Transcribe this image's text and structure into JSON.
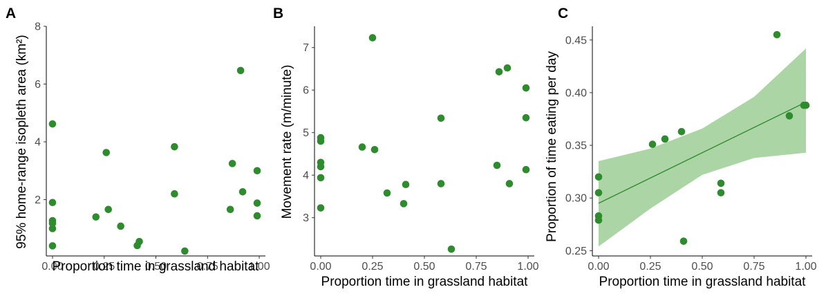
{
  "colors": {
    "point": "#2e8b2e",
    "ribbon": "#a8d3a0",
    "fit": "#2e8b2e"
  },
  "chart_data": [
    {
      "type": "scatter",
      "panel": "A",
      "xlabel": "Proportion time in grassland habitat",
      "ylabel": "95% home-range isopleth area (km²)",
      "xlim": [
        -0.03,
        1.03
      ],
      "ylim": [
        0.05,
        8.0
      ],
      "xticks": [
        0,
        0.25,
        0.5,
        0.75,
        1.0
      ],
      "xtick_labels": [
        "0.00",
        "0.25",
        "0.50",
        "0.75",
        "1.00"
      ],
      "yticks": [
        2,
        4,
        6,
        8
      ],
      "ytick_labels": [
        "2",
        "4",
        "6",
        "8"
      ],
      "grid": false,
      "points": [
        {
          "x": 0.0,
          "y": 4.62
        },
        {
          "x": 0.0,
          "y": 1.9
        },
        {
          "x": 0.0,
          "y": 1.27
        },
        {
          "x": 0.0,
          "y": 1.18
        },
        {
          "x": 0.0,
          "y": 1.0
        },
        {
          "x": 0.0,
          "y": 0.4
        },
        {
          "x": 0.21,
          "y": 1.4
        },
        {
          "x": 0.26,
          "y": 3.63
        },
        {
          "x": 0.27,
          "y": 1.66
        },
        {
          "x": 0.33,
          "y": 1.08
        },
        {
          "x": 0.42,
          "y": 0.55
        },
        {
          "x": 0.41,
          "y": 0.41
        },
        {
          "x": 0.59,
          "y": 3.83
        },
        {
          "x": 0.59,
          "y": 2.2
        },
        {
          "x": 0.64,
          "y": 0.22
        },
        {
          "x": 0.86,
          "y": 1.66
        },
        {
          "x": 0.87,
          "y": 3.25
        },
        {
          "x": 0.91,
          "y": 6.47
        },
        {
          "x": 0.92,
          "y": 2.27
        },
        {
          "x": 0.99,
          "y": 3.0
        },
        {
          "x": 0.99,
          "y": 1.88
        },
        {
          "x": 0.99,
          "y": 1.44
        }
      ]
    },
    {
      "type": "scatter",
      "panel": "B",
      "xlabel": "Proportion time in grassland habitat",
      "ylabel": "Movement rate (m/minute)",
      "xlim": [
        -0.03,
        1.03
      ],
      "ylim": [
        2.1,
        7.5
      ],
      "xticks": [
        0,
        0.25,
        0.5,
        0.75,
        1.0
      ],
      "xtick_labels": [
        "0.00",
        "0.25",
        "0.50",
        "0.75",
        "1.00"
      ],
      "yticks": [
        3,
        4,
        5,
        6,
        7
      ],
      "ytick_labels": [
        "3",
        "4",
        "5",
        "6",
        "7"
      ],
      "grid": false,
      "points": [
        {
          "x": 0.0,
          "y": 4.88
        },
        {
          "x": 0.0,
          "y": 4.8
        },
        {
          "x": 0.0,
          "y": 4.3
        },
        {
          "x": 0.0,
          "y": 4.2
        },
        {
          "x": 0.0,
          "y": 3.94
        },
        {
          "x": 0.0,
          "y": 3.23
        },
        {
          "x": 0.2,
          "y": 4.66
        },
        {
          "x": 0.25,
          "y": 7.23
        },
        {
          "x": 0.26,
          "y": 4.6
        },
        {
          "x": 0.32,
          "y": 3.58
        },
        {
          "x": 0.4,
          "y": 3.33
        },
        {
          "x": 0.41,
          "y": 3.78
        },
        {
          "x": 0.58,
          "y": 5.34
        },
        {
          "x": 0.58,
          "y": 3.8
        },
        {
          "x": 0.63,
          "y": 2.26
        },
        {
          "x": 0.85,
          "y": 4.23
        },
        {
          "x": 0.86,
          "y": 6.43
        },
        {
          "x": 0.9,
          "y": 6.52
        },
        {
          "x": 0.91,
          "y": 3.8
        },
        {
          "x": 0.99,
          "y": 6.05
        },
        {
          "x": 0.99,
          "y": 5.35
        },
        {
          "x": 0.99,
          "y": 4.13
        }
      ]
    },
    {
      "type": "scatter",
      "panel": "C",
      "xlabel": "Proportion time in grassland habitat",
      "ylabel": "Proportion of time eating per day",
      "xlim": [
        -0.03,
        1.03
      ],
      "ylim": [
        0.245,
        0.463
      ],
      "xticks": [
        0,
        0.25,
        0.5,
        0.75,
        1.0
      ],
      "xtick_labels": [
        "0.00",
        "0.25",
        "0.50",
        "0.75",
        "1.00"
      ],
      "yticks": [
        0.25,
        0.3,
        0.35,
        0.4,
        0.45
      ],
      "ytick_labels": [
        "0.25",
        "0.30",
        "0.35",
        "0.40",
        "0.45"
      ],
      "grid": false,
      "points": [
        {
          "x": 0.0,
          "y": 0.32
        },
        {
          "x": 0.0,
          "y": 0.305
        },
        {
          "x": 0.0,
          "y": 0.283
        },
        {
          "x": 0.0,
          "y": 0.279
        },
        {
          "x": 0.26,
          "y": 0.351
        },
        {
          "x": 0.32,
          "y": 0.356
        },
        {
          "x": 0.4,
          "y": 0.363
        },
        {
          "x": 0.41,
          "y": 0.259
        },
        {
          "x": 0.59,
          "y": 0.314
        },
        {
          "x": 0.59,
          "y": 0.305
        },
        {
          "x": 0.86,
          "y": 0.455
        },
        {
          "x": 0.92,
          "y": 0.378
        },
        {
          "x": 0.99,
          "y": 0.388
        },
        {
          "x": 1.0,
          "y": 0.388
        }
      ],
      "fit": {
        "x": [
          0,
          0.25,
          0.5,
          0.75,
          1.0
        ],
        "y": [
          0.295,
          0.319,
          0.343,
          0.367,
          0.391
        ],
        "lower": [
          0.254,
          0.29,
          0.322,
          0.338,
          0.343
        ],
        "upper": [
          0.335,
          0.347,
          0.366,
          0.396,
          0.442
        ]
      }
    }
  ]
}
